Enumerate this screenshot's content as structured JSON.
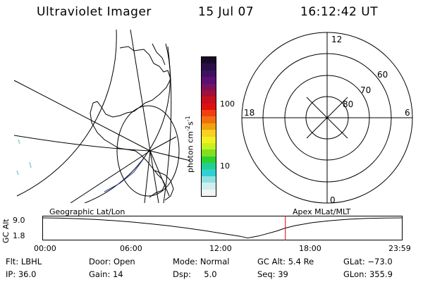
{
  "header": {
    "title": "Ultraviolet Imager",
    "date": "15 Jul 07",
    "time": "16:12:42 UT"
  },
  "colorbar": {
    "label": "photon cm",
    "label_exp1": "-2",
    "label_mid": "s",
    "label_exp2": "-1",
    "ticks": [
      "100",
      "10"
    ],
    "colors": [
      "#1a0a28",
      "#2a0f46",
      "#3e1060",
      "#5a1070",
      "#7a1060",
      "#a0103a",
      "#c8101c",
      "#e01010",
      "#f04010",
      "#f07010",
      "#f0a010",
      "#f8d020",
      "#f0f020",
      "#c8f020",
      "#80e020",
      "#30d030",
      "#20d090",
      "#30d0d0",
      "#90e0e0",
      "#d0eeee",
      "#f2f6f6"
    ]
  },
  "labels": {
    "geographic": "Geographic Lat/Lon",
    "apex": "Apex  MLat/MLT",
    "gc_alt_axis": "GC Alt"
  },
  "polar": {
    "mlt_labels": {
      "top": "12",
      "right": "6",
      "bottom": "0",
      "left": "18"
    },
    "lat_labels": [
      "60",
      "70",
      "80"
    ]
  },
  "altitude_plot": {
    "y_ticks": [
      "9.0",
      "1.8"
    ],
    "x_ticks": [
      "00:00",
      "06:00",
      "12:00",
      "18:00",
      "23:59"
    ],
    "current_time_fraction": 0.675,
    "curve": [
      [
        0.0,
        9.0
      ],
      [
        0.05,
        8.9
      ],
      [
        0.1,
        8.7
      ],
      [
        0.15,
        8.4
      ],
      [
        0.2,
        8.0
      ],
      [
        0.25,
        7.5
      ],
      [
        0.3,
        6.9
      ],
      [
        0.35,
        6.2
      ],
      [
        0.4,
        5.4
      ],
      [
        0.45,
        4.5
      ],
      [
        0.5,
        3.5
      ],
      [
        0.55,
        2.5
      ],
      [
        0.57,
        1.9
      ],
      [
        0.6,
        2.6
      ],
      [
        0.65,
        4.3
      ],
      [
        0.675,
        5.4
      ],
      [
        0.7,
        6.2
      ],
      [
        0.75,
        7.3
      ],
      [
        0.8,
        8.0
      ],
      [
        0.85,
        8.5
      ],
      [
        0.9,
        8.8
      ],
      [
        0.95,
        8.95
      ],
      [
        1.0,
        9.0
      ]
    ]
  },
  "info": {
    "row1": [
      "Flt: LBHL",
      "Door: Open",
      "Mode: Normal",
      "GC Alt: 5.4 Re",
      "GLat: −73.0"
    ],
    "row2": [
      "IP: 36.0",
      "Gain: 14",
      "Dsp:     5.0",
      "Seq: 39",
      "GLon: 355.9"
    ]
  }
}
